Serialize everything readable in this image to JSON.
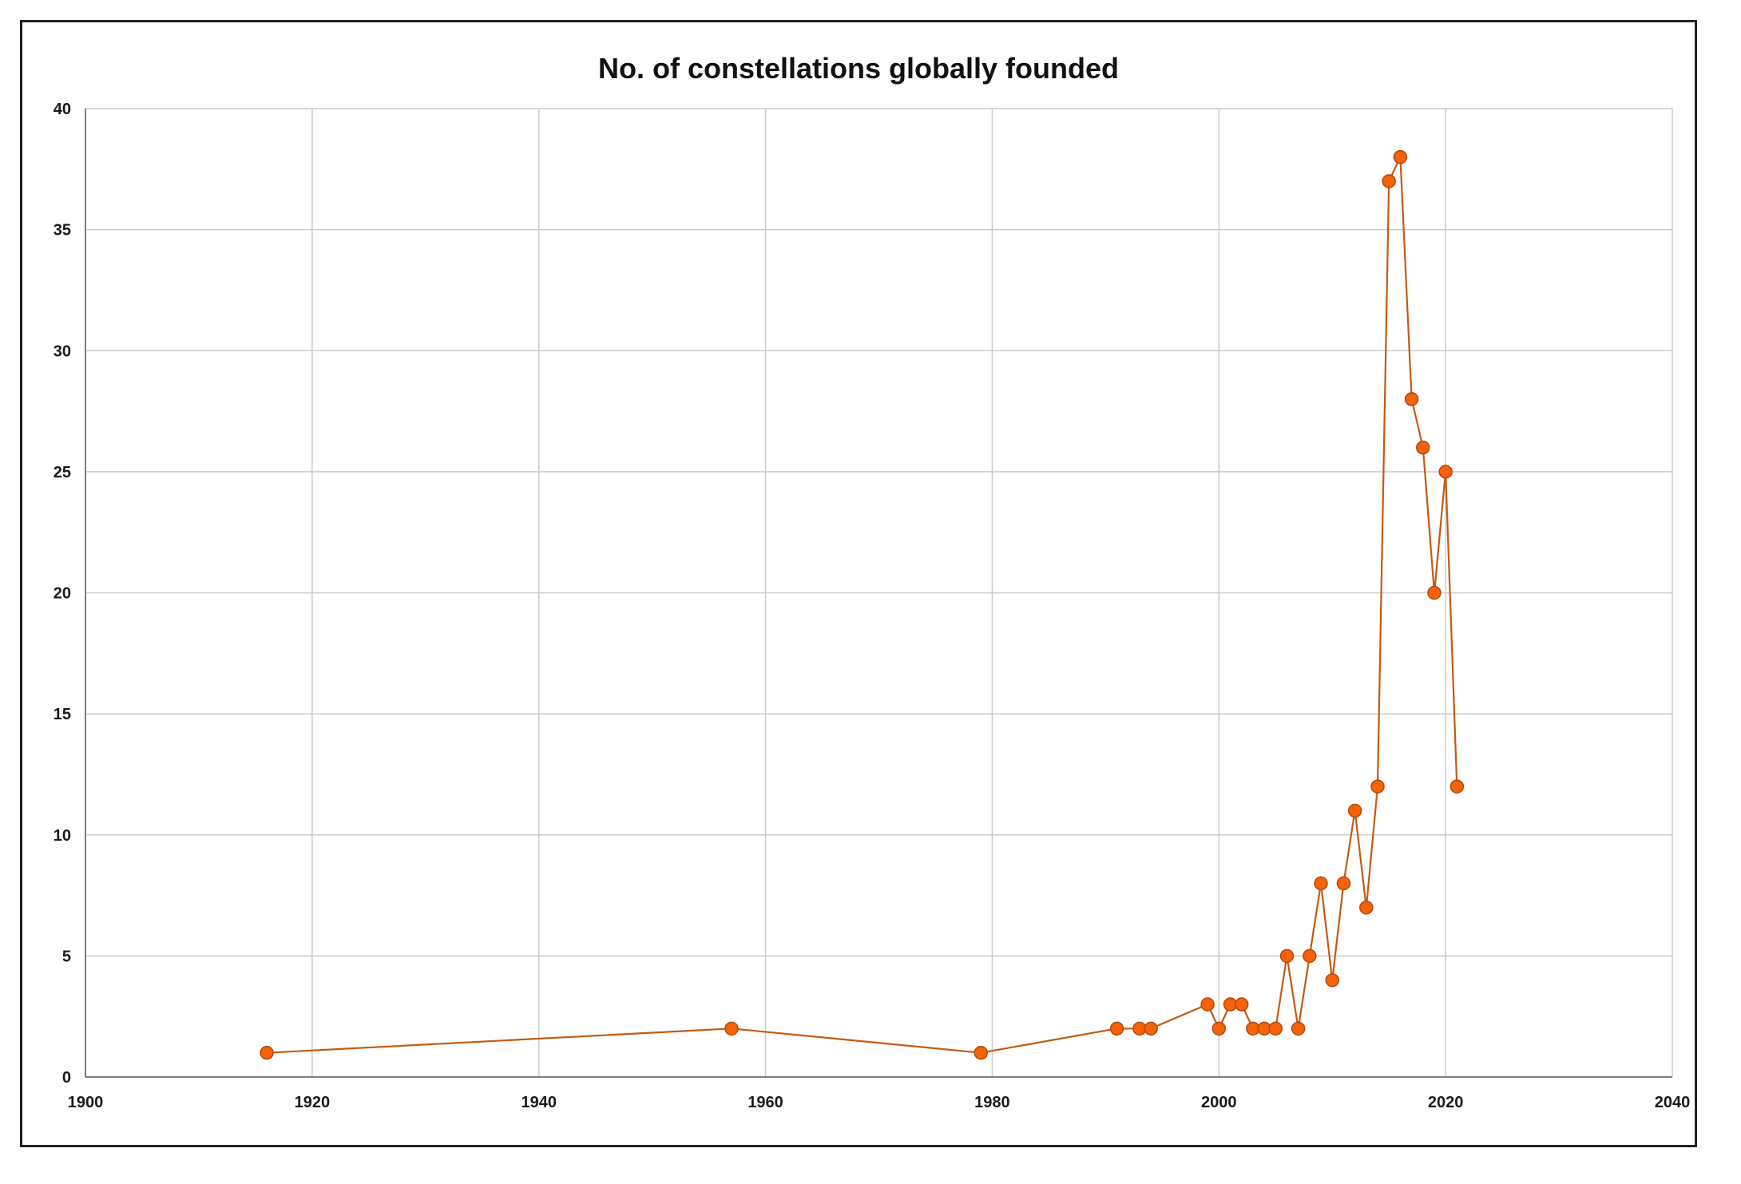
{
  "chart_data": {
    "type": "line",
    "title": "No. of constellations globally founded",
    "xlabel": "",
    "ylabel": "",
    "xlim": [
      1900,
      2040
    ],
    "ylim": [
      0,
      40
    ],
    "grid": true,
    "x_ticks": [
      1900,
      1920,
      1940,
      1960,
      1980,
      2000,
      2020,
      2040
    ],
    "y_ticks": [
      0,
      5,
      10,
      15,
      20,
      25,
      30,
      35,
      40
    ],
    "colors": {
      "line": "#c55a11",
      "marker_fill": "#f5620a",
      "marker_edge": "#b24a0a",
      "grid": "#cccccc",
      "axis": "#7f7f7f"
    },
    "series": [
      {
        "name": "No. of constellations globally founded",
        "x": [
          1916,
          1957,
          1979,
          1991,
          1993,
          1994,
          1999,
          2000,
          2001,
          2002,
          2003,
          2004,
          2005,
          2006,
          2007,
          2008,
          2009,
          2010,
          2011,
          2012,
          2013,
          2014,
          2015,
          2016,
          2017,
          2018,
          2019,
          2020,
          2021
        ],
        "y": [
          1,
          2,
          1,
          2,
          2,
          2,
          3,
          2,
          3,
          3,
          2,
          2,
          2,
          5,
          2,
          5,
          8,
          4,
          8,
          11,
          7,
          12,
          37,
          38,
          28,
          26,
          20,
          25,
          12
        ]
      }
    ]
  }
}
